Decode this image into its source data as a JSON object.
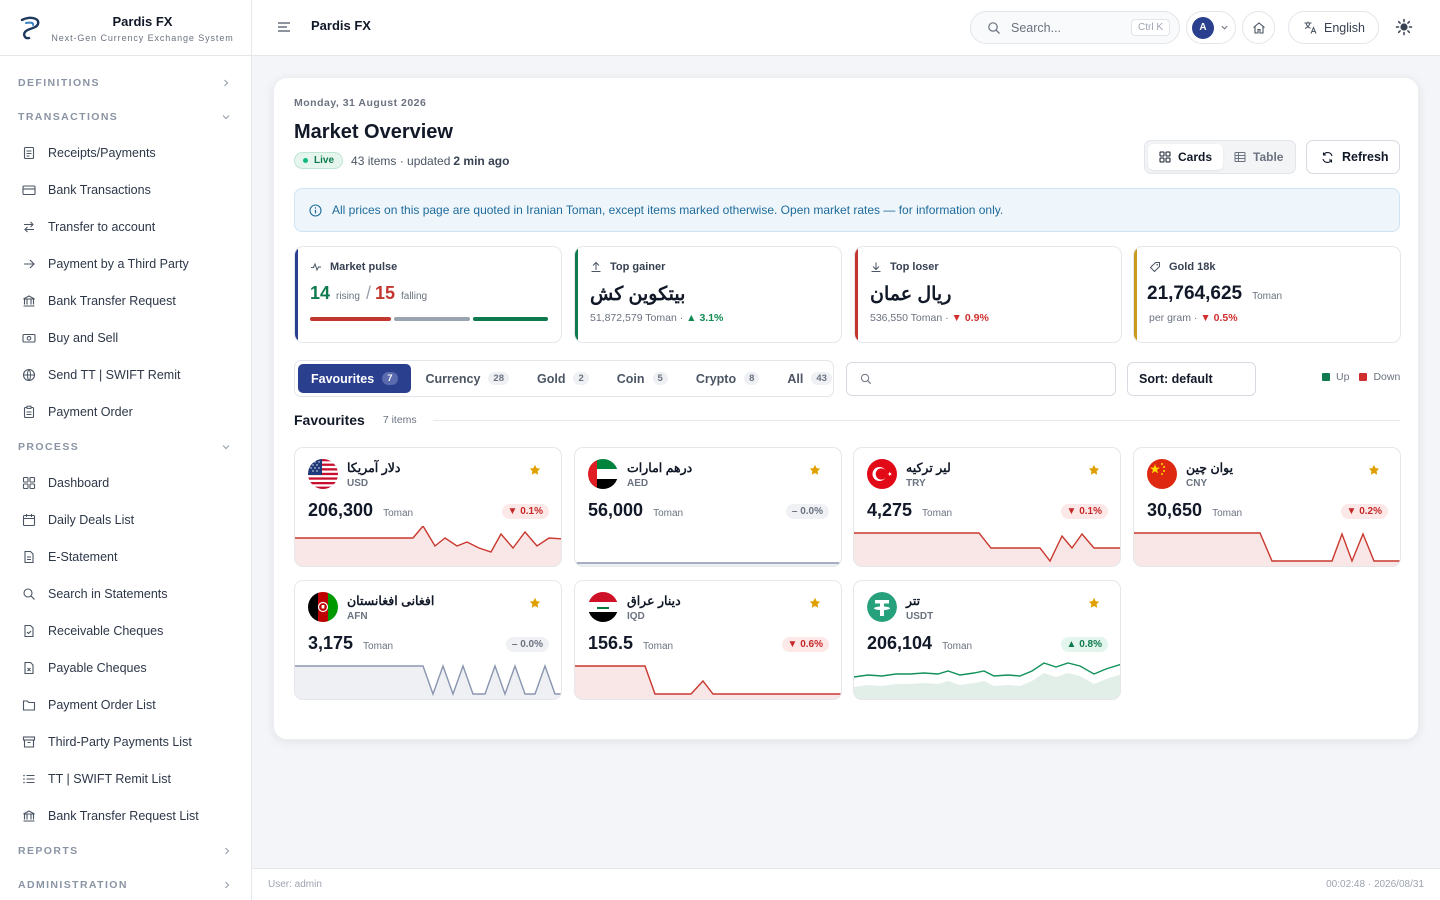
{
  "brand": {
    "name": "Pardis FX",
    "subtitle": "Next-Gen Currency Exchange System"
  },
  "sidebar": {
    "sections": {
      "definitions": "DEFINITIONS",
      "transactions": "TRANSACTIONS",
      "process": "PROCESS",
      "reports": "REPORTS",
      "administration": "ADMINISTRATION"
    },
    "transactions": [
      {
        "label": "Receipts/Payments",
        "icon": "receipt-icon"
      },
      {
        "label": "Bank Transactions",
        "icon": "card-icon"
      },
      {
        "label": "Transfer to account",
        "icon": "transfer-icon"
      },
      {
        "label": "Payment by a Third Party",
        "icon": "arrow-right-icon"
      },
      {
        "label": "Bank Transfer Request",
        "icon": "bank-icon"
      },
      {
        "label": "Buy and Sell",
        "icon": "cash-icon"
      },
      {
        "label": "Send TT | SWIFT Remit",
        "icon": "globe-icon"
      },
      {
        "label": "Payment Order",
        "icon": "clipboard-icon"
      }
    ],
    "process": [
      {
        "label": "Dashboard",
        "icon": "dashboard-icon"
      },
      {
        "label": "Daily Deals List",
        "icon": "calendar-icon"
      },
      {
        "label": "E-Statement",
        "icon": "document-icon"
      },
      {
        "label": "Search in Statements",
        "icon": "search-icon"
      },
      {
        "label": "Receivable Cheques",
        "icon": "file-check-icon"
      },
      {
        "label": "Payable Cheques",
        "icon": "file-x-icon"
      },
      {
        "label": "Payment Order List",
        "icon": "folder-icon"
      },
      {
        "label": "Third-Party Payments List",
        "icon": "archive-icon"
      },
      {
        "label": "TT | SWIFT Remit List",
        "icon": "list-icon"
      },
      {
        "label": "Bank Transfer Request List",
        "icon": "bank-icon"
      }
    ]
  },
  "topbar": {
    "title": "Pardis FX",
    "search_placeholder": "Search...",
    "shortcut": "Ctrl K",
    "avatar_initial": "A",
    "language": "English"
  },
  "page": {
    "date": "Monday, 31 August 2026",
    "title": "Market Overview",
    "live": "Live",
    "items_text": "43 items · updated",
    "updated": "2 min ago",
    "view_cards": "Cards",
    "view_table": "Table",
    "refresh": "Refresh",
    "notice": "All prices on this page are quoted in Iranian Toman, except items marked otherwise. Open market rates — for information only."
  },
  "stats": {
    "pulse": {
      "label": "Market pulse",
      "rising": "14",
      "rising_word": "rising",
      "sep": "/",
      "falling": "15",
      "falling_word": "falling",
      "rising_count": 14,
      "falling_count": 15,
      "total": 43
    },
    "gainer": {
      "label": "Top gainer",
      "name": "بیتکوین کش",
      "detail": "51,872,579 Toman ·",
      "change": "▲ 3.1%"
    },
    "loser": {
      "label": "Top loser",
      "name": "ریال عمان",
      "detail": "536,550 Toman ·",
      "change": "▼ 0.9%"
    },
    "gold": {
      "label": "Gold 18k",
      "value": "21,764,625",
      "unit": "Toman",
      "detail": "per gram ·",
      "change": "▼ 0.5%"
    }
  },
  "tabs": [
    {
      "label": "Favourites",
      "count": "7"
    },
    {
      "label": "Currency",
      "count": "28"
    },
    {
      "label": "Gold",
      "count": "2"
    },
    {
      "label": "Coin",
      "count": "5"
    },
    {
      "label": "Crypto",
      "count": "8"
    },
    {
      "label": "All",
      "count": "43"
    }
  ],
  "sort": "Sort: default",
  "legend": {
    "up": "Up",
    "down": "Down",
    "up_color": "#0f7a4d",
    "down_color": "#d12f2f"
  },
  "favourites": {
    "title": "Favourites",
    "count": "7 items"
  },
  "cards": [
    {
      "name": "دلار آمریکا",
      "code": "USD",
      "price": "206,300",
      "unit": "Toman",
      "change": "▼ 0.1%",
      "trend": "down"
    },
    {
      "name": "درهم امارات",
      "code": "AED",
      "price": "56,000",
      "unit": "Toman",
      "change": "– 0.0%",
      "trend": "flat"
    },
    {
      "name": "لیر ترکیه",
      "code": "TRY",
      "price": "4,275",
      "unit": "Toman",
      "change": "▼ 0.1%",
      "trend": "down"
    },
    {
      "name": "یوان چین",
      "code": "CNY",
      "price": "30,650",
      "unit": "Toman",
      "change": "▼ 0.2%",
      "trend": "down"
    },
    {
      "name": "افغانی افغانستان",
      "code": "AFN",
      "price": "3,175",
      "unit": "Toman",
      "change": "– 0.0%",
      "trend": "flat"
    },
    {
      "name": "دینار عراق",
      "code": "IQD",
      "price": "156.5",
      "unit": "Toman",
      "change": "▼ 0.6%",
      "trend": "down"
    },
    {
      "name": "تتر",
      "code": "USDT",
      "price": "206,104",
      "unit": "Toman",
      "change": "▲ 0.8%",
      "trend": "up"
    }
  ],
  "footer": {
    "user": "User: admin",
    "time": "00:02:48 · 2026/08/31"
  }
}
